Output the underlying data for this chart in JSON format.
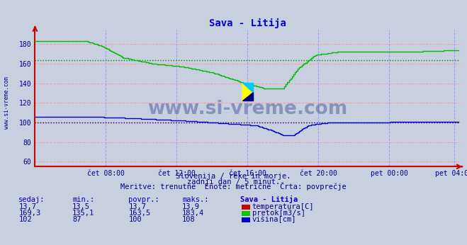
{
  "title": "Sava - Litija",
  "title_color": "#0000cc",
  "bg_color": "#c8d0e0",
  "plot_bg_color": "#c8d0e0",
  "grid_color_h": "#ff9999",
  "grid_color_v": "#9999ff",
  "axis_color": "#cc0000",
  "tick_color": "#000088",
  "text_color": "#000088",
  "subtitle1": "Slovenija / reke in morje.",
  "subtitle2": "zadnji dan / 5 minut.",
  "subtitle3": "Meritve: trenutne  Enote: metrične  Črta: povprečje",
  "table_headers": [
    "sedaj:",
    "min.:",
    "povpr.:",
    "maks.:",
    "Sava - Litija"
  ],
  "temp_row": [
    "13,7",
    "13,5",
    "13,7",
    "13,9",
    "temperatura[C]"
  ],
  "pretok_row": [
    "169,3",
    "135,1",
    "163,5",
    "183,4",
    "pretok[m3/s]"
  ],
  "visina_row": [
    "102",
    "87",
    "100",
    "108",
    "višina[cm]"
  ],
  "temp_color": "#cc0000",
  "pretok_color": "#00cc00",
  "visina_color": "#0000cc",
  "watermark": "www.si-vreme.com",
  "side_text": "www.si-vreme.com",
  "x_labels": [
    "čet 08:00",
    "čet 12:00",
    "čet 16:00",
    "čet 20:00",
    "pet 00:00",
    "pet 04:00"
  ],
  "x_min": 0,
  "x_max": 288,
  "x_tick_pos": [
    48,
    96,
    144,
    192,
    240,
    284
  ],
  "pretok_avg": 163.5,
  "visina_avg": 100,
  "y_ticks": [
    60,
    80,
    100,
    120,
    140,
    160,
    180
  ],
  "y_min": 55,
  "y_max": 195
}
